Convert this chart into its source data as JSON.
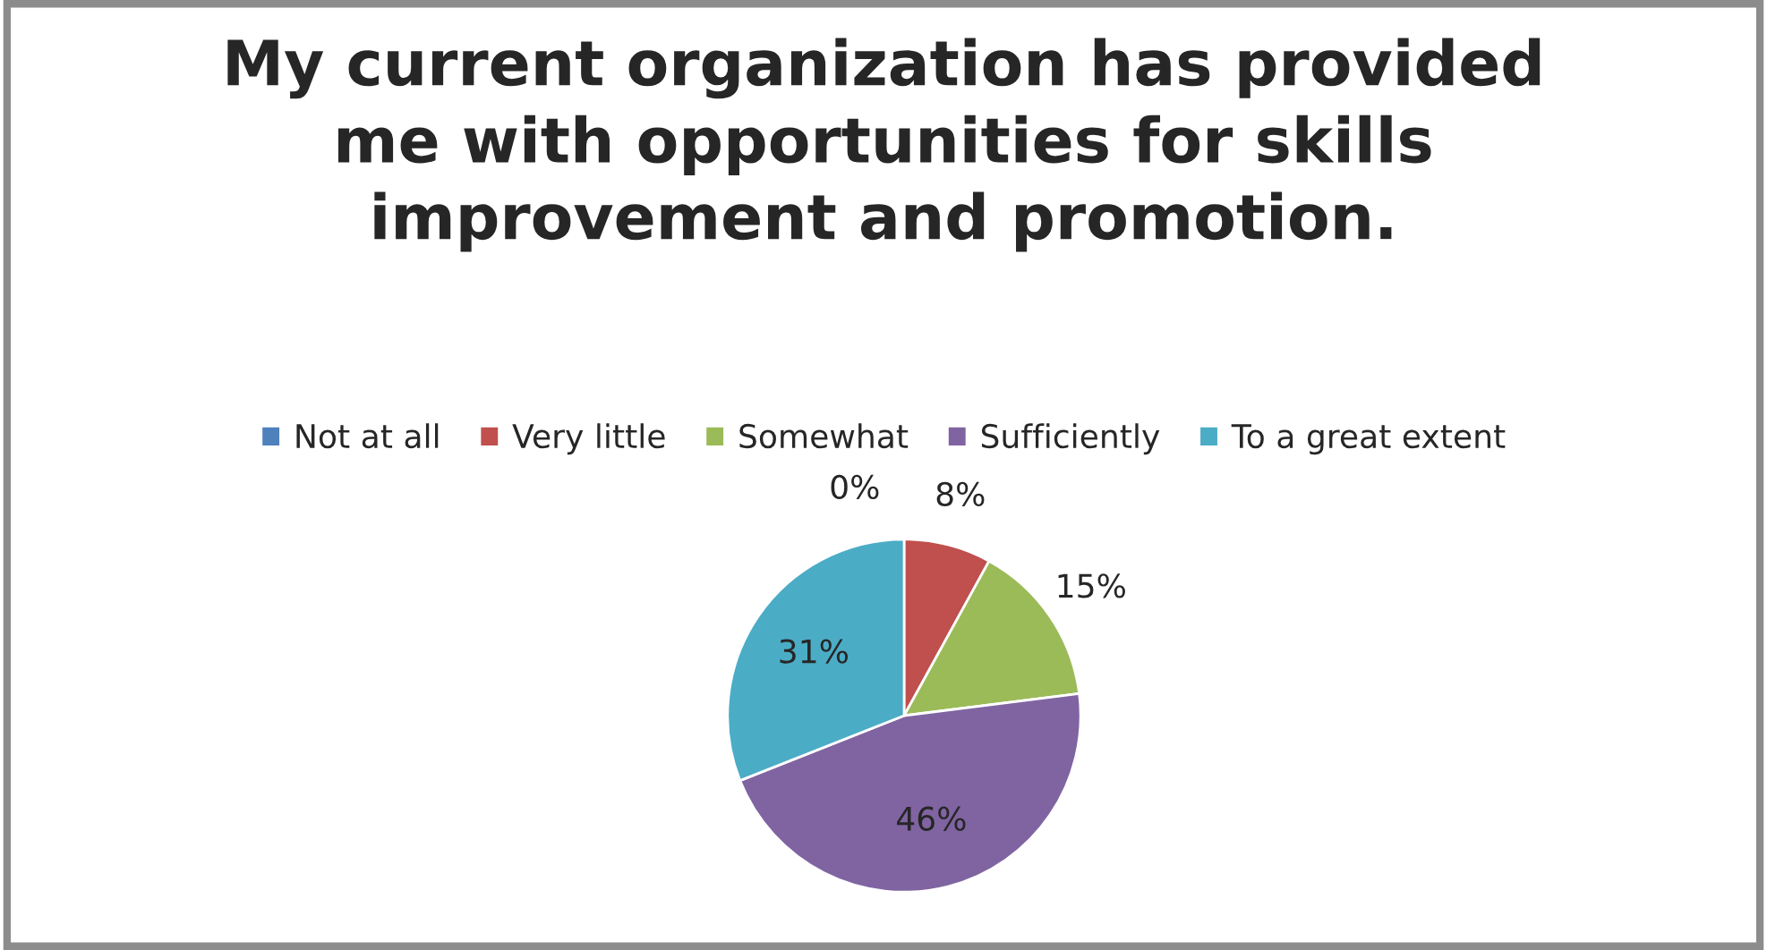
{
  "chart_data": {
    "type": "pie",
    "title": "My current organization has provided\nme with opportunities for skills\nimprovement and promotion.",
    "categories": [
      "Not at all",
      "Very little",
      "Somewhat",
      "Sufficiently",
      "To a great extent"
    ],
    "values": [
      0,
      8,
      15,
      46,
      31
    ],
    "colors": [
      "#4f81bd",
      "#c0504d",
      "#9bbb59",
      "#8064a2",
      "#4bacc6"
    ],
    "value_labels": [
      "0%",
      "8%",
      "15%",
      "46%",
      "31%"
    ],
    "legend": "top"
  }
}
